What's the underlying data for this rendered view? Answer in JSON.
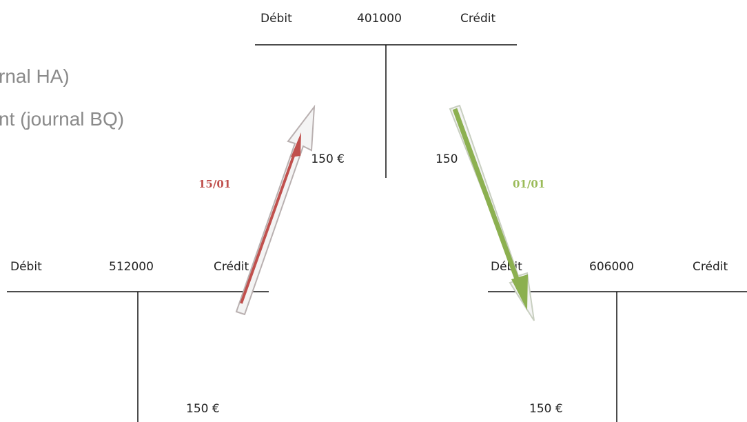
{
  "header_lines": [
    "rnal HA)",
    "nt (journal BQ)"
  ],
  "accounts": [
    {
      "debit_label": "Débit",
      "number": "401000",
      "credit_label": "Crédit",
      "debit_entry": "150 €",
      "credit_entry": "150"
    },
    {
      "debit_label": "Débit",
      "number": "512000",
      "credit_label": "Crédit",
      "credit_entry": "150 €"
    },
    {
      "debit_label": "Débit",
      "number": "606000",
      "credit_label": "Crédit",
      "debit_entry": "150 €"
    }
  ],
  "arrows": [
    {
      "label": "15/01"
    },
    {
      "label": "01/01"
    }
  ]
}
